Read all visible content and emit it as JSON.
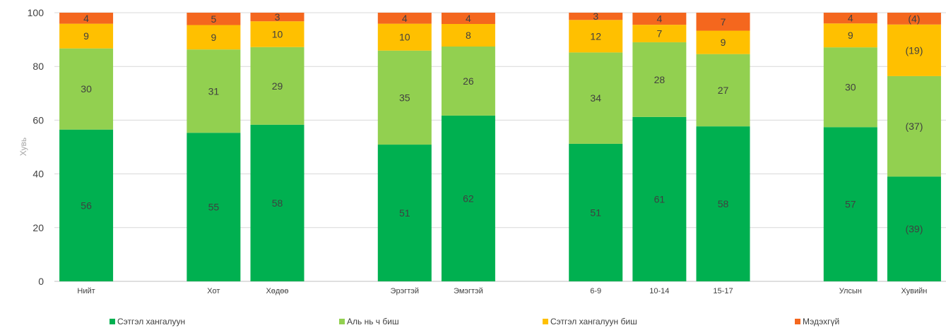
{
  "chart_data": {
    "type": "bar",
    "stacked": true,
    "ylabel": "Хувь",
    "xlabel": "",
    "ylim": [
      0,
      100
    ],
    "yticks": [
      0,
      20,
      40,
      60,
      80,
      100
    ],
    "grid": true,
    "legend_position": "bottom",
    "categories": [
      "Нийт",
      "",
      "Хот",
      "Хөдөө",
      "",
      "Эрэгтэй",
      "Эмэгтэй",
      "",
      "6-9",
      "10-14",
      "15-17",
      "",
      "Улсын",
      "Хувийн"
    ],
    "series": [
      {
        "name": "Сэтгэл хангалуун",
        "color": "#00b050",
        "values": [
          56.5,
          null,
          55.3,
          58.3,
          null,
          50.9,
          61.7,
          null,
          51.2,
          61.2,
          57.7,
          null,
          57.4,
          39.0
        ],
        "labels": [
          "56",
          "",
          "55",
          "58",
          "",
          "51",
          "62",
          "",
          "51",
          "61",
          "58",
          "",
          "57",
          "(39)"
        ]
      },
      {
        "name": "Аль нь ч биш",
        "color": "#92d050",
        "values": [
          30.2,
          null,
          31.0,
          28.9,
          null,
          35.0,
          25.7,
          null,
          34.0,
          27.8,
          26.9,
          null,
          29.7,
          37.4
        ],
        "labels": [
          "30",
          "",
          "31",
          "29",
          "",
          "35",
          "26",
          "",
          "34",
          "28",
          "27",
          "",
          "30",
          "(37)"
        ]
      },
      {
        "name": "Сэтгэл хангалуун биш",
        "color": "#ffc000",
        "values": [
          9.2,
          null,
          9.1,
          9.6,
          null,
          10.0,
          8.4,
          null,
          12.1,
          6.5,
          8.7,
          null,
          8.9,
          19.2
        ],
        "labels": [
          "9",
          "",
          "9",
          "10",
          "",
          "10",
          "8",
          "",
          "12",
          "7",
          "9",
          "",
          "9",
          "(19)"
        ]
      },
      {
        "name": "Мэдэхгүй",
        "color": "#f4671e",
        "values": [
          4.1,
          null,
          4.6,
          3.2,
          null,
          4.1,
          4.2,
          null,
          2.7,
          4.5,
          6.7,
          null,
          4.0,
          4.4
        ],
        "labels": [
          "4",
          "",
          "5",
          "3",
          "",
          "4",
          "4",
          "",
          "3",
          "4",
          "7",
          "",
          "4",
          "(4)"
        ]
      }
    ]
  }
}
